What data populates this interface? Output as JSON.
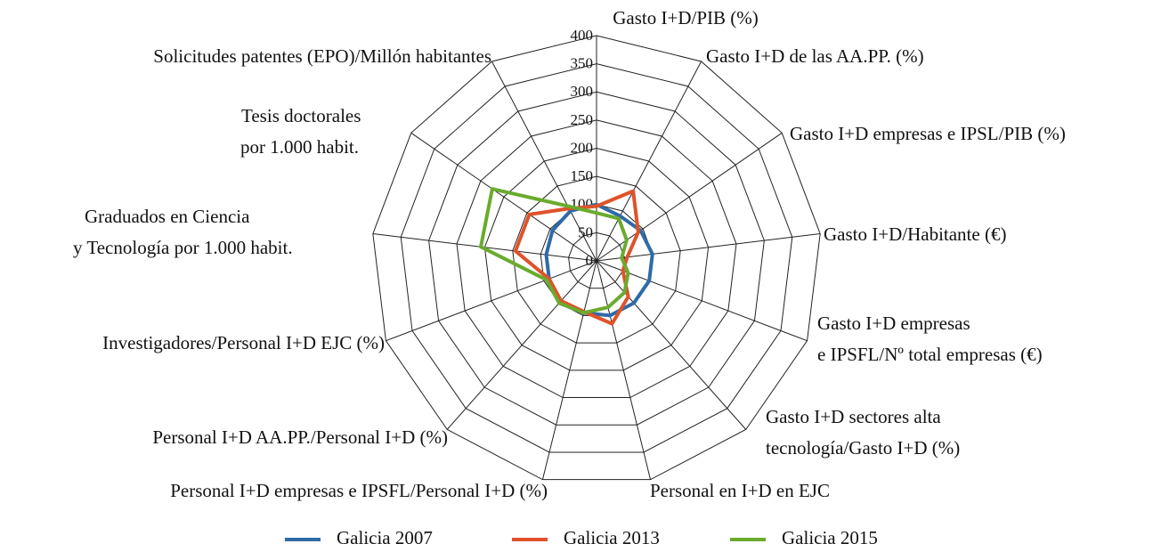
{
  "chart_data": {
    "type": "radar",
    "categories": [
      [
        "Gasto I+D/PIB (%)"
      ],
      [
        "Gasto I+D de las AA.PP. (%)"
      ],
      [
        "Gasto I+D empresas e IPSL/PIB (%)"
      ],
      [
        "Gasto I+D/Habitante (€)"
      ],
      [
        "Gasto I+D empresas",
        "e IPSFL/Nº total empresas (€)"
      ],
      [
        "Gasto I+D sectores alta",
        "tecnología/Gasto I+D (%)"
      ],
      [
        "Personal en I+D en EJC"
      ],
      [
        "Personal I+D empresas e IPSFL/Personal I+D (%)"
      ],
      [
        "Personal I+D AA.PP./Personal I+D (%)"
      ],
      [
        "Investigadores/Personal I+D EJC (%)"
      ],
      [
        "Graduados en Ciencia",
        "y Tecnología por 1.000 habit."
      ],
      [
        "Tesis doctorales",
        "por 1.000 habit."
      ],
      [
        "Solicitudes patentes (EPO)/Millón habitantes"
      ]
    ],
    "series": [
      {
        "name": "Galicia 2007",
        "color": "#2e6aa8",
        "values": [
          100,
          90,
          95,
          100,
          100,
          100,
          100,
          95,
          100,
          90,
          90,
          95,
          100
        ]
      },
      {
        "name": "Galicia 2013",
        "color": "#e0522a",
        "values": [
          97,
          140,
          90,
          55,
          50,
          85,
          115,
          93,
          95,
          90,
          145,
          145,
          105
        ]
      },
      {
        "name": "Galicia 2015",
        "color": "#6aab2e",
        "values": [
          85,
          85,
          65,
          45,
          60,
          75,
          85,
          95,
          100,
          95,
          207,
          225,
          110
        ]
      }
    ],
    "ylim": [
      0,
      400
    ],
    "yticks": [
      0,
      50,
      100,
      150,
      200,
      250,
      300,
      350,
      400
    ],
    "grid": true
  }
}
